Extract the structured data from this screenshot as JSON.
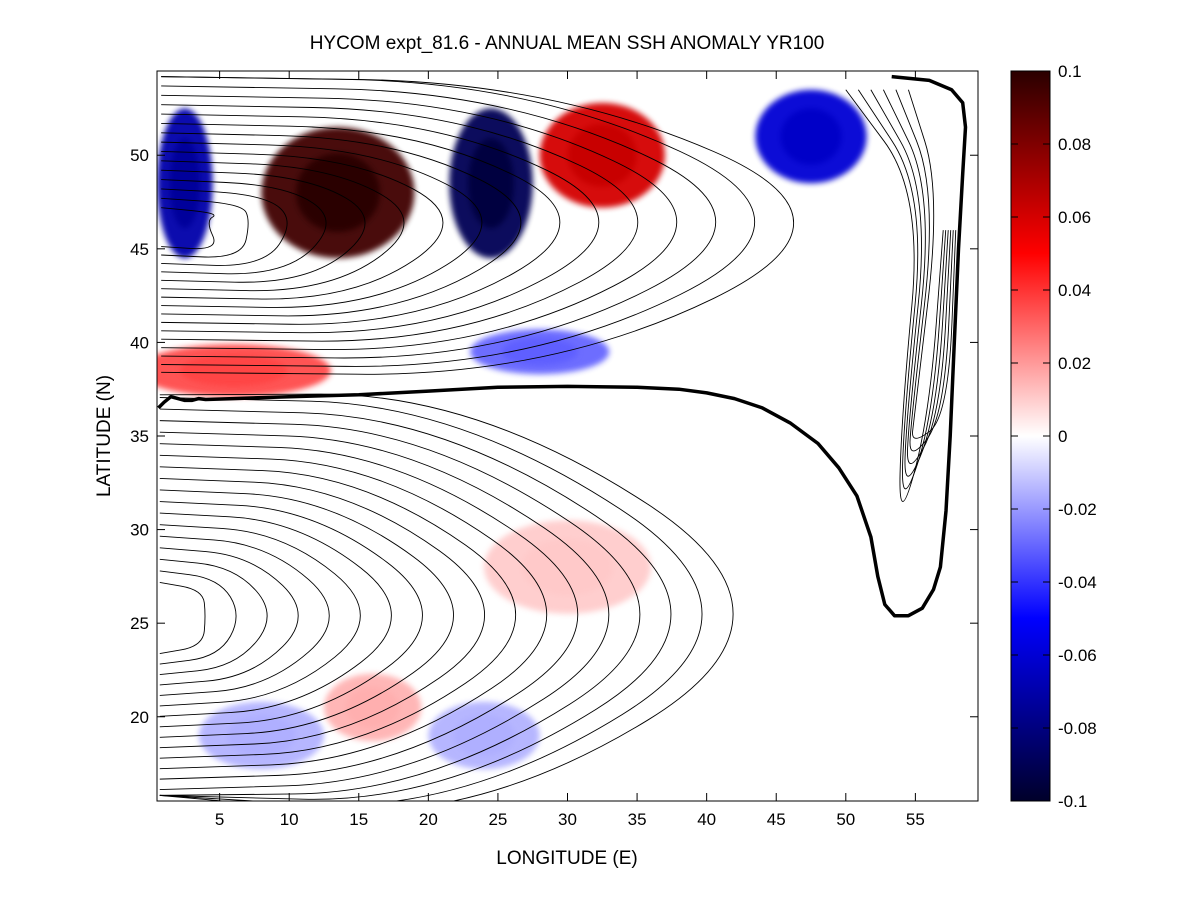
{
  "chart_data": {
    "type": "heatmap",
    "title": "HYCOM expt_81.6 - ANNUAL MEAN SSH ANOMALY YR100",
    "xlabel": "LONGITUDE (E)",
    "ylabel": "LATITUDE (N)",
    "xlim": [
      0.5,
      59.5
    ],
    "ylim": [
      15.5,
      54.5
    ],
    "x_ticks": [
      5,
      10,
      15,
      20,
      25,
      30,
      35,
      40,
      45,
      50,
      55
    ],
    "x_tick_labels": [
      "5",
      "10",
      "15",
      "20",
      "25",
      "30",
      "35",
      "40",
      "45",
      "50",
      "55"
    ],
    "y_ticks": [
      20,
      25,
      30,
      35,
      40,
      45,
      50
    ],
    "y_tick_labels": [
      "20",
      "25",
      "30",
      "35",
      "40",
      "45",
      "50"
    ],
    "colorbar": {
      "range": [
        -0.1,
        0.1
      ],
      "ticks": [
        0.1,
        0.08,
        0.06,
        0.04,
        0.02,
        0,
        -0.02,
        -0.04,
        -0.06,
        -0.08,
        -0.1
      ],
      "tick_labels": [
        "0.1",
        "0.08",
        "0.06",
        "0.04",
        "0.02",
        "0",
        "-0.02",
        "-0.04",
        "-0.06",
        "-0.08",
        "-0.1"
      ],
      "colormap": "blue-white-red",
      "colors": {
        "low": "#00002a",
        "mid_low": "#0000ff",
        "mid": "#ffffff",
        "mid_high": "#ff0000",
        "high": "#2a0000"
      }
    },
    "anomaly_features": [
      {
        "label": "western boundary blue cell",
        "lon": 2.5,
        "lat": 48.5,
        "value": -0.07
      },
      {
        "label": "red cell",
        "lon": 13.5,
        "lat": 48.0,
        "value": 0.095
      },
      {
        "label": "blue cell",
        "lon": 24.5,
        "lat": 48.5,
        "value": -0.09
      },
      {
        "label": "red cell",
        "lon": 32.5,
        "lat": 50.0,
        "value": 0.06
      },
      {
        "label": "blue cell",
        "lon": 47.5,
        "lat": 51.0,
        "value": -0.06
      },
      {
        "label": "red band",
        "lon": 6.0,
        "lat": 38.5,
        "value": 0.035
      },
      {
        "label": "blue patch",
        "lon": 28.0,
        "lat": 39.5,
        "value": -0.03
      },
      {
        "label": "weak blue patch",
        "lon": 8.0,
        "lat": 19.0,
        "value": -0.015
      },
      {
        "label": "weak red patch",
        "lon": 16.0,
        "lat": 20.5,
        "value": 0.015
      },
      {
        "label": "weak blue patch",
        "lon": 24.0,
        "lat": 19.0,
        "value": -0.015
      },
      {
        "label": "weak red patch",
        "lon": 30.0,
        "lat": 28.0,
        "value": 0.01
      }
    ],
    "thick_contour": [
      [
        0.6,
        36.5
      ],
      [
        1.0,
        36.8
      ],
      [
        1.5,
        37.1
      ],
      [
        2.0,
        37.0
      ],
      [
        2.5,
        36.9
      ],
      [
        3.0,
        36.9
      ],
      [
        3.5,
        37.0
      ],
      [
        4.0,
        36.95
      ],
      [
        6,
        37.0
      ],
      [
        10,
        37.1
      ],
      [
        15,
        37.2
      ],
      [
        20,
        37.4
      ],
      [
        25,
        37.6
      ],
      [
        30,
        37.65
      ],
      [
        35,
        37.6
      ],
      [
        38,
        37.5
      ],
      [
        40,
        37.3
      ],
      [
        42,
        37.0
      ],
      [
        44,
        36.5
      ],
      [
        46,
        35.7
      ],
      [
        48,
        34.6
      ],
      [
        49.5,
        33.3
      ],
      [
        50.8,
        31.8
      ],
      [
        51.8,
        29.6
      ],
      [
        52.3,
        27.5
      ],
      [
        52.8,
        26.0
      ],
      [
        53.5,
        25.4
      ],
      [
        54.5,
        25.4
      ],
      [
        55.5,
        25.8
      ],
      [
        56.3,
        26.8
      ],
      [
        56.8,
        28.0
      ],
      [
        57.2,
        31
      ],
      [
        57.5,
        35
      ],
      [
        57.8,
        40
      ],
      [
        58.1,
        45
      ],
      [
        58.4,
        49
      ],
      [
        58.6,
        51.5
      ],
      [
        58.4,
        52.8
      ],
      [
        57.6,
        53.5
      ],
      [
        56.0,
        54.0
      ],
      [
        53.3,
        54.2
      ]
    ]
  }
}
